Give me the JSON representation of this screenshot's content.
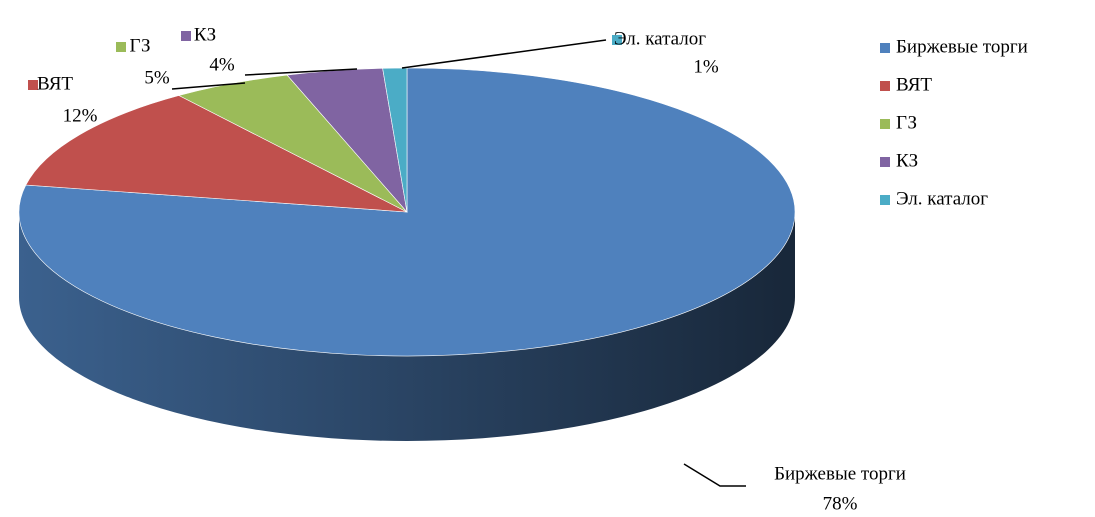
{
  "chart_data": {
    "type": "pie",
    "categories": [
      "Биржевые торги",
      "ВЯТ",
      "ГЗ",
      "КЗ",
      "Эл. каталог"
    ],
    "values": [
      78,
      12,
      5,
      4,
      1
    ],
    "value_labels": [
      "78%",
      "12%",
      "5%",
      "4%",
      "1%"
    ],
    "colors": [
      "#4f81bd",
      "#c0504d",
      "#9bbb59",
      "#8064a2",
      "#4bacc6"
    ],
    "legend": "right"
  }
}
